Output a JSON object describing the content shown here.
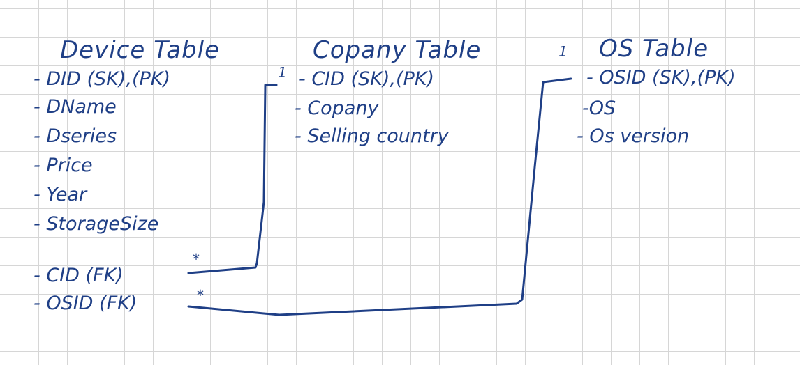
{
  "device_table": {
    "title": "Device Table",
    "fields": [
      "- DID (SK),(PK)",
      "- DName",
      "- Dseries",
      "- Price",
      "- Year",
      "- StorageSize",
      "- CID (FK)",
      "- OSID (FK)"
    ]
  },
  "company_table": {
    "title": "Copany Table",
    "fields": [
      "- CID (SK),(PK)",
      "- Copany",
      "- Selling country"
    ]
  },
  "os_table": {
    "title": "OS Table",
    "fields": [
      "- OSID (SK),(PK)",
      "-OS",
      "- Os version"
    ]
  },
  "relationships": [
    {
      "from": "device_table.CID",
      "to": "company_table.CID",
      "from_card": "*",
      "to_card": "1"
    },
    {
      "from": "device_table.OSID",
      "to": "os_table.OSID",
      "from_card": "*",
      "to_card": "1"
    }
  ]
}
